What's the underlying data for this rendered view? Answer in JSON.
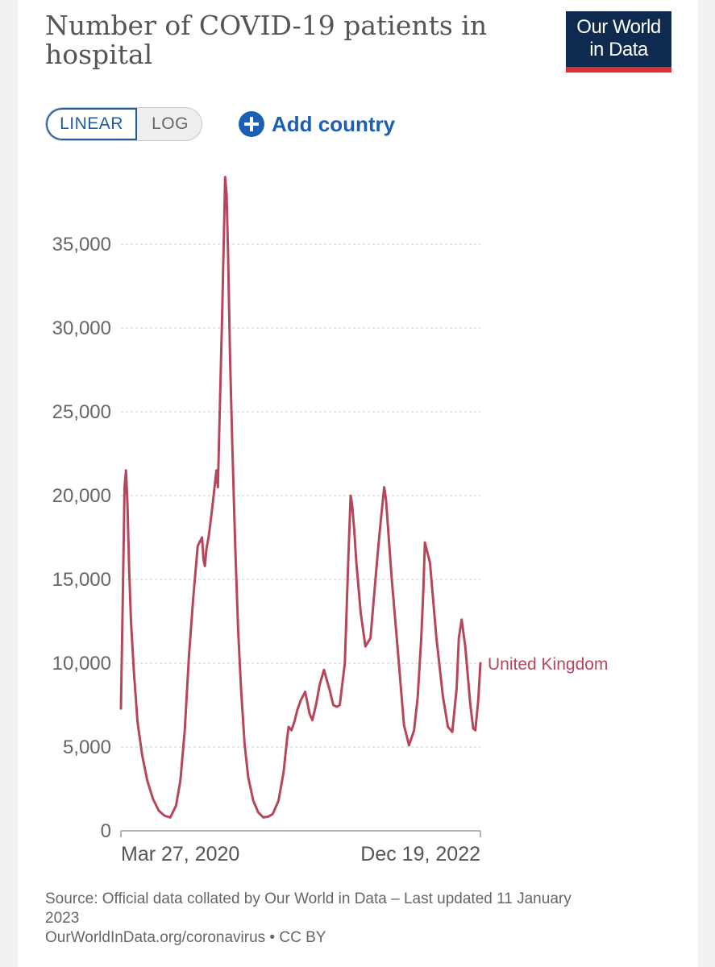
{
  "header": {
    "title": "Number of COVID-19 patients in hospital",
    "logo_line1": "Our World",
    "logo_line2": "in Data"
  },
  "controls": {
    "linear_label": "LINEAR",
    "log_label": "LOG",
    "add_country_label": "Add country"
  },
  "colors": {
    "series": "#b6475b",
    "logo_bg": "#0f2a4f",
    "logo_bar": "#dc2f2f",
    "accent": "#1a5fb4"
  },
  "chart_data": {
    "type": "line",
    "title": "Number of COVID-19 patients in hospital",
    "xlabel": "",
    "ylabel": "",
    "ylim": [
      0,
      39000
    ],
    "y_ticks": [
      0,
      5000,
      10000,
      15000,
      20000,
      25000,
      30000,
      35000
    ],
    "y_tick_labels": [
      "0",
      "5,000",
      "10,000",
      "15,000",
      "20,000",
      "25,000",
      "30,000",
      "35,000"
    ],
    "x_tick_labels": [
      "Mar 27, 2020",
      "Dec 19, 2022"
    ],
    "x_range": [
      "2020-03-27",
      "2022-12-19"
    ],
    "grid": "horizontal dashed",
    "series": [
      {
        "name": "United Kingdom",
        "x": [
          "2020-03-27",
          "2020-04-01",
          "2020-04-06",
          "2020-04-10",
          "2020-04-14",
          "2020-04-19",
          "2020-04-24",
          "2020-05-02",
          "2020-05-12",
          "2020-05-25",
          "2020-06-08",
          "2020-06-24",
          "2020-07-10",
          "2020-07-26",
          "2020-08-11",
          "2020-08-27",
          "2020-09-08",
          "2020-09-20",
          "2020-10-02",
          "2020-10-14",
          "2020-10-26",
          "2020-11-07",
          "2020-11-11",
          "2020-11-15",
          "2020-11-19",
          "2020-11-25",
          "2020-12-01",
          "2020-12-09",
          "2020-12-17",
          "2020-12-21",
          "2020-12-25",
          "2020-12-29",
          "2021-01-02",
          "2021-01-06",
          "2021-01-10",
          "2021-01-14",
          "2021-01-18",
          "2021-01-24",
          "2021-01-30",
          "2021-02-07",
          "2021-02-15",
          "2021-02-23",
          "2021-03-05",
          "2021-03-15",
          "2021-03-29",
          "2021-04-12",
          "2021-04-26",
          "2021-05-10",
          "2021-05-22",
          "2021-06-07",
          "2021-06-21",
          "2021-07-01",
          "2021-07-05",
          "2021-07-13",
          "2021-07-21",
          "2021-07-29",
          "2021-08-08",
          "2021-08-20",
          "2021-09-01",
          "2021-09-09",
          "2021-09-19",
          "2021-09-29",
          "2021-10-11",
          "2021-10-19",
          "2021-10-27",
          "2021-11-06",
          "2021-11-16",
          "2021-11-24",
          "2021-12-08",
          "2021-12-18",
          "2021-12-24",
          "2021-12-28",
          "2022-01-03",
          "2022-01-09",
          "2022-01-21",
          "2022-02-03",
          "2022-02-17",
          "2022-03-01",
          "2022-03-11",
          "2022-03-19",
          "2022-03-27",
          "2022-04-01",
          "2022-04-07",
          "2022-04-17",
          "2022-05-03",
          "2022-05-21",
          "2022-06-04",
          "2022-06-18",
          "2022-06-28",
          "2022-07-08",
          "2022-07-14",
          "2022-07-18",
          "2022-08-01",
          "2022-08-19",
          "2022-09-06",
          "2022-09-20",
          "2022-10-02",
          "2022-10-14",
          "2022-10-20",
          "2022-10-28",
          "2022-11-07",
          "2022-11-21",
          "2022-11-29",
          "2022-12-05",
          "2022-12-13",
          "2022-12-19"
        ],
        "values": [
          7300,
          13500,
          20500,
          21500,
          19500,
          15500,
          12500,
          9500,
          6500,
          4500,
          3000,
          1900,
          1200,
          900,
          800,
          1500,
          3000,
          6000,
          10500,
          14000,
          17000,
          17500,
          16200,
          15800,
          16800,
          17500,
          18500,
          20000,
          21500,
          20500,
          24000,
          27500,
          31000,
          35000,
          39000,
          38000,
          34500,
          28000,
          23000,
          17000,
          12000,
          8500,
          5200,
          3200,
          1800,
          1100,
          800,
          850,
          1000,
          1800,
          3500,
          5500,
          6200,
          6000,
          6500,
          7200,
          7800,
          8300,
          7000,
          6600,
          7500,
          8700,
          9600,
          9000,
          8400,
          7500,
          7400,
          7500,
          10000,
          16500,
          20000,
          19500,
          18000,
          16000,
          13000,
          11000,
          11500,
          14500,
          17000,
          18800,
          20500,
          19800,
          18000,
          15000,
          11000,
          6300,
          5100,
          6000,
          8000,
          11500,
          14500,
          17200,
          16000,
          11500,
          8000,
          6200,
          5900,
          8500,
          11500,
          12600,
          11000,
          7500,
          6100,
          6000,
          7800,
          10000
        ]
      }
    ],
    "end_label": "United Kingdom"
  },
  "footer": {
    "source_line1": "Source: Official data collated by Our World in Data – Last updated 11 January",
    "source_line2": "2023",
    "source_line3": "OurWorldInData.org/coronavirus • CC BY"
  }
}
